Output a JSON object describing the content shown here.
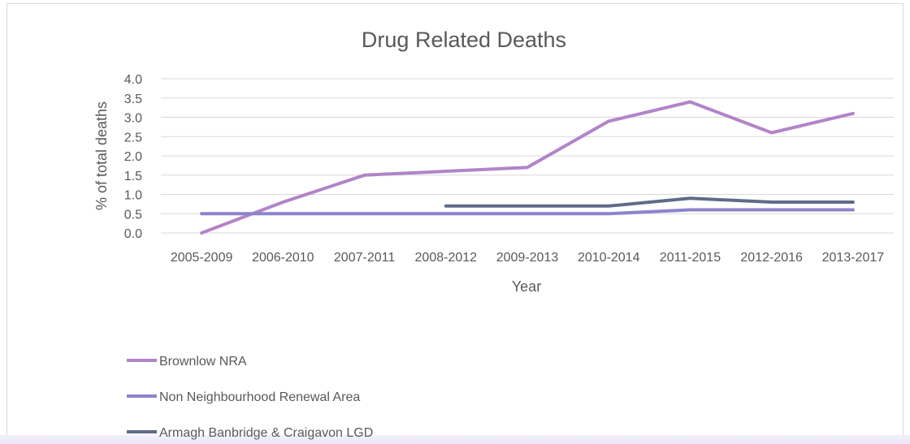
{
  "chart_data": {
    "type": "line",
    "title": "Drug Related Deaths",
    "xlabel": "Year",
    "ylabel": "% of total deaths",
    "ylim": [
      0,
      4
    ],
    "y_ticks": [
      "0.0",
      "0.5",
      "1.0",
      "1.5",
      "2.0",
      "2.5",
      "3.0",
      "3.5",
      "4.0"
    ],
    "grid": true,
    "legend_position": "bottom-left",
    "categories": [
      "2005-2009",
      "2006-2010",
      "2007-2011",
      "2008-2012",
      "2009-2013",
      "2010-2014",
      "2011-2015",
      "2012-2016",
      "2013-2017"
    ],
    "series": [
      {
        "name": "Brownlow NRA",
        "color": "#b284c8",
        "values": [
          0.0,
          0.8,
          1.5,
          1.6,
          1.7,
          2.9,
          3.4,
          2.6,
          3.1
        ]
      },
      {
        "name": "Non Neighbourhood Renewal Area",
        "color": "#8c84cc",
        "values": [
          0.5,
          0.5,
          0.5,
          0.5,
          0.5,
          0.5,
          0.6,
          0.6,
          0.6
        ]
      },
      {
        "name": "Armagh Banbridge & Craigavon LGD",
        "color": "#5e6c8a",
        "values": [
          null,
          null,
          null,
          0.7,
          0.7,
          0.7,
          0.9,
          0.8,
          0.8
        ]
      }
    ]
  }
}
